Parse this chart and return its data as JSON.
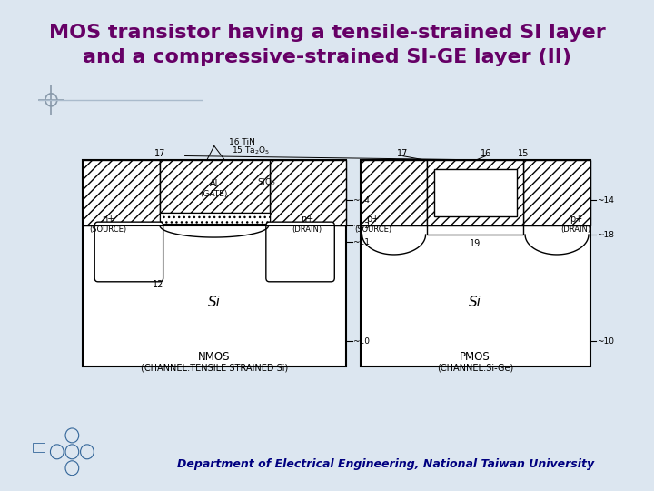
{
  "title_line1": "MOS transistor having a tensile-strained SI layer",
  "title_line2": "and a compressive-strained SI-GE layer (II)",
  "title_color": "#660066",
  "bg_color": "#dce6f0",
  "footer_text": "Department of Electrical Engineering, National Taiwan University",
  "nmos_label": "NMOS",
  "nmos_sublabel": "(CHANNEL:TENSILE STRAINED Si)",
  "pmos_label": "PMOS",
  "pmos_sublabel": "(CHANNEL:Si-Ge)"
}
